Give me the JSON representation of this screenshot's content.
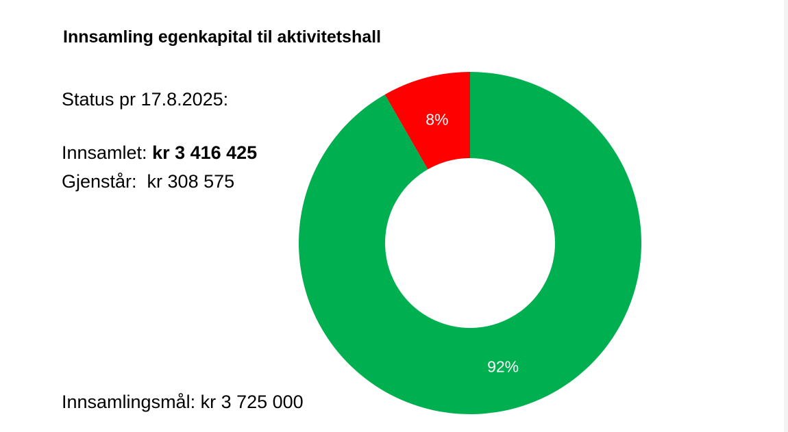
{
  "chart_data": {
    "type": "pie",
    "subtype": "donut",
    "title": "Innsamling egenkapital til aktivitetshall",
    "slices": [
      {
        "name": "Gjenstår",
        "value": 308575,
        "label": "8%",
        "color": "#ff0000"
      },
      {
        "name": "Innsamlet",
        "value": 3416425,
        "label": "92%",
        "color": "#00b050"
      }
    ]
  },
  "text": {
    "status": "Status pr 17.8.2025:",
    "collected_label": "Innsamlet: ",
    "collected_value": "kr 3 416 425",
    "remaining": "Gjenstår:  kr 308 575",
    "goal": "Innsamlingsmål: kr 3 725 000"
  }
}
